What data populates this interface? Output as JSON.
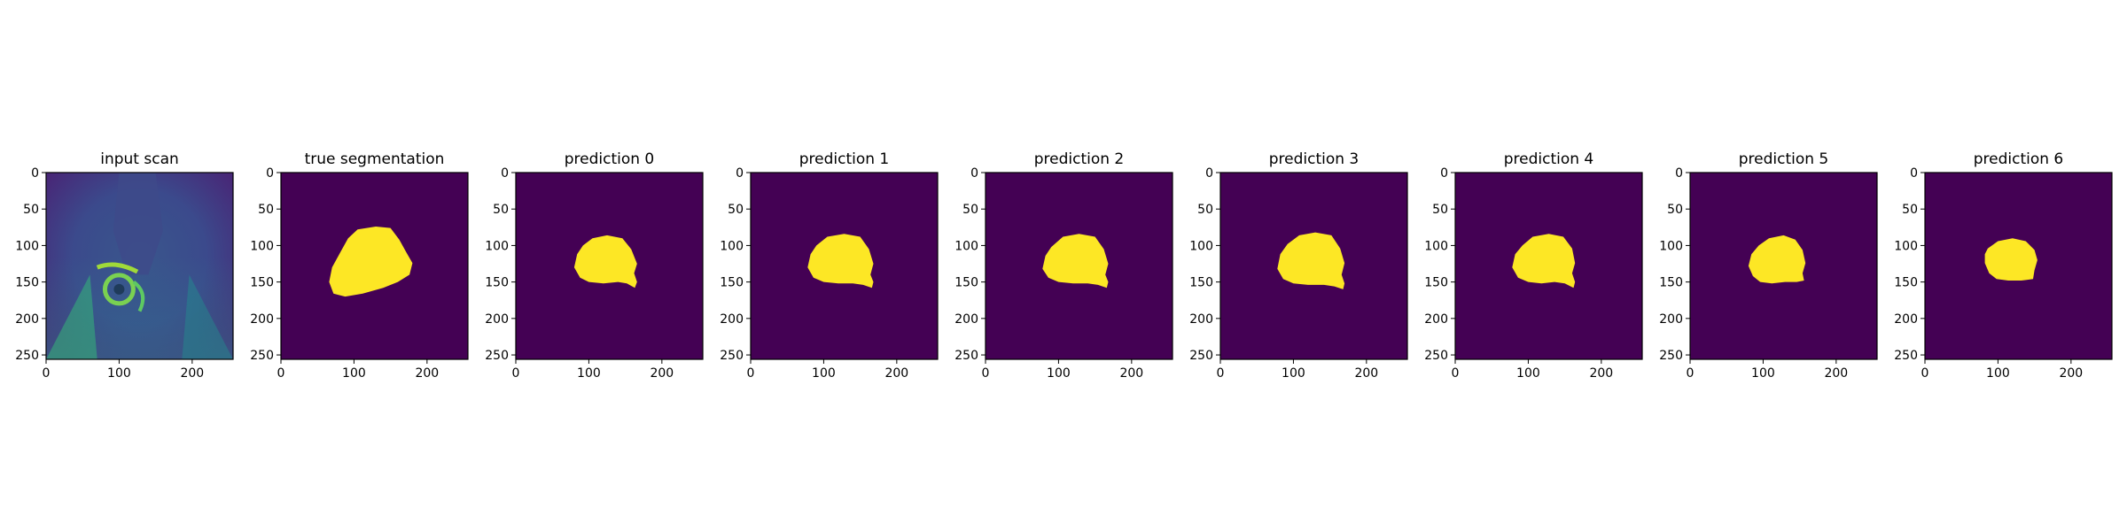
{
  "colors": {
    "background": "#440154",
    "foreground": "#fde725",
    "scan_dark": "#3b4a8c",
    "scan_mid": "#2d7e8e",
    "scan_bright": "#5ec962"
  },
  "chart_data": [
    {
      "type": "heatmap",
      "title": "input scan",
      "xlim": [
        0,
        256
      ],
      "ylim": [
        256,
        0
      ],
      "xticks": [
        0,
        100,
        200
      ],
      "yticks": [
        0,
        50,
        100,
        150,
        200,
        250
      ],
      "mask": null
    },
    {
      "type": "heatmap",
      "title": "true segmentation",
      "xlim": [
        0,
        256
      ],
      "ylim": [
        256,
        0
      ],
      "xticks": [
        0,
        100,
        200
      ],
      "yticks": [
        0,
        50,
        100,
        150,
        200,
        250
      ],
      "mask": [
        [
          105,
          78
        ],
        [
          130,
          74
        ],
        [
          150,
          76
        ],
        [
          162,
          92
        ],
        [
          172,
          110
        ],
        [
          180,
          124
        ],
        [
          176,
          140
        ],
        [
          160,
          150
        ],
        [
          140,
          158
        ],
        [
          112,
          166
        ],
        [
          88,
          170
        ],
        [
          72,
          166
        ],
        [
          66,
          150
        ],
        [
          70,
          130
        ],
        [
          82,
          108
        ],
        [
          92,
          90
        ]
      ]
    },
    {
      "type": "heatmap",
      "title": "prediction 0",
      "xlim": [
        0,
        256
      ],
      "ylim": [
        256,
        0
      ],
      "xticks": [
        0,
        100,
        200
      ],
      "yticks": [
        0,
        50,
        100,
        150,
        200,
        250
      ],
      "mask": [
        [
          92,
          100
        ],
        [
          105,
          90
        ],
        [
          125,
          86
        ],
        [
          146,
          90
        ],
        [
          158,
          105
        ],
        [
          166,
          125
        ],
        [
          162,
          138
        ],
        [
          166,
          150
        ],
        [
          163,
          158
        ],
        [
          152,
          152
        ],
        [
          140,
          150
        ],
        [
          120,
          152
        ],
        [
          100,
          150
        ],
        [
          88,
          144
        ],
        [
          80,
          130
        ],
        [
          84,
          112
        ]
      ]
    },
    {
      "type": "heatmap",
      "title": "prediction 1",
      "xlim": [
        0,
        256
      ],
      "ylim": [
        256,
        0
      ],
      "xticks": [
        0,
        100,
        200
      ],
      "yticks": [
        0,
        50,
        100,
        150,
        200,
        250
      ],
      "mask": [
        [
          90,
          100
        ],
        [
          105,
          88
        ],
        [
          128,
          84
        ],
        [
          150,
          88
        ],
        [
          162,
          105
        ],
        [
          168,
          125
        ],
        [
          164,
          140
        ],
        [
          168,
          150
        ],
        [
          166,
          158
        ],
        [
          154,
          154
        ],
        [
          140,
          152
        ],
        [
          120,
          152
        ],
        [
          100,
          150
        ],
        [
          86,
          144
        ],
        [
          78,
          130
        ],
        [
          82,
          112
        ]
      ]
    },
    {
      "type": "heatmap",
      "title": "prediction 2",
      "xlim": [
        0,
        256
      ],
      "ylim": [
        256,
        0
      ],
      "xticks": [
        0,
        100,
        200
      ],
      "yticks": [
        0,
        50,
        100,
        150,
        200,
        250
      ],
      "mask": [
        [
          90,
          102
        ],
        [
          106,
          88
        ],
        [
          128,
          84
        ],
        [
          150,
          88
        ],
        [
          162,
          105
        ],
        [
          168,
          125
        ],
        [
          164,
          140
        ],
        [
          168,
          150
        ],
        [
          166,
          158
        ],
        [
          154,
          154
        ],
        [
          140,
          152
        ],
        [
          120,
          152
        ],
        [
          100,
          150
        ],
        [
          86,
          144
        ],
        [
          78,
          132
        ],
        [
          82,
          114
        ]
      ]
    },
    {
      "type": "heatmap",
      "title": "prediction 3",
      "xlim": [
        0,
        256
      ],
      "ylim": [
        256,
        0
      ],
      "xticks": [
        0,
        100,
        200
      ],
      "yticks": [
        0,
        50,
        100,
        150,
        200,
        250
      ],
      "mask": [
        [
          92,
          98
        ],
        [
          108,
          86
        ],
        [
          130,
          82
        ],
        [
          152,
          86
        ],
        [
          164,
          104
        ],
        [
          170,
          124
        ],
        [
          166,
          140
        ],
        [
          170,
          152
        ],
        [
          168,
          160
        ],
        [
          156,
          156
        ],
        [
          142,
          154
        ],
        [
          120,
          154
        ],
        [
          100,
          152
        ],
        [
          86,
          146
        ],
        [
          78,
          132
        ],
        [
          82,
          112
        ]
      ]
    },
    {
      "type": "heatmap",
      "title": "prediction 4",
      "xlim": [
        0,
        256
      ],
      "ylim": [
        256,
        0
      ],
      "xticks": [
        0,
        100,
        200
      ],
      "yticks": [
        0,
        50,
        100,
        150,
        200,
        250
      ],
      "mask": [
        [
          92,
          100
        ],
        [
          106,
          88
        ],
        [
          128,
          84
        ],
        [
          148,
          88
        ],
        [
          160,
          104
        ],
        [
          164,
          124
        ],
        [
          160,
          138
        ],
        [
          164,
          150
        ],
        [
          162,
          158
        ],
        [
          150,
          152
        ],
        [
          136,
          150
        ],
        [
          118,
          152
        ],
        [
          100,
          150
        ],
        [
          86,
          144
        ],
        [
          78,
          130
        ],
        [
          82,
          112
        ]
      ]
    },
    {
      "type": "heatmap",
      "title": "prediction 5",
      "xlim": [
        0,
        256
      ],
      "ylim": [
        256,
        0
      ],
      "xticks": [
        0,
        100,
        200
      ],
      "yticks": [
        0,
        50,
        100,
        150,
        200,
        250
      ],
      "mask": [
        [
          94,
          100
        ],
        [
          108,
          90
        ],
        [
          128,
          86
        ],
        [
          144,
          92
        ],
        [
          154,
          106
        ],
        [
          158,
          124
        ],
        [
          154,
          138
        ],
        [
          156,
          148
        ],
        [
          146,
          150
        ],
        [
          130,
          150
        ],
        [
          112,
          152
        ],
        [
          96,
          150
        ],
        [
          86,
          142
        ],
        [
          80,
          128
        ],
        [
          84,
          112
        ]
      ]
    },
    {
      "type": "heatmap",
      "title": "prediction 6",
      "xlim": [
        0,
        256
      ],
      "ylim": [
        256,
        0
      ],
      "xticks": [
        0,
        100,
        200
      ],
      "yticks": [
        0,
        50,
        100,
        150,
        200,
        250
      ],
      "mask": [
        [
          86,
          104
        ],
        [
          100,
          94
        ],
        [
          120,
          90
        ],
        [
          138,
          94
        ],
        [
          150,
          106
        ],
        [
          154,
          120
        ],
        [
          150,
          134
        ],
        [
          148,
          146
        ],
        [
          132,
          148
        ],
        [
          114,
          148
        ],
        [
          98,
          146
        ],
        [
          88,
          138
        ],
        [
          82,
          124
        ],
        [
          82,
          112
        ]
      ]
    }
  ]
}
